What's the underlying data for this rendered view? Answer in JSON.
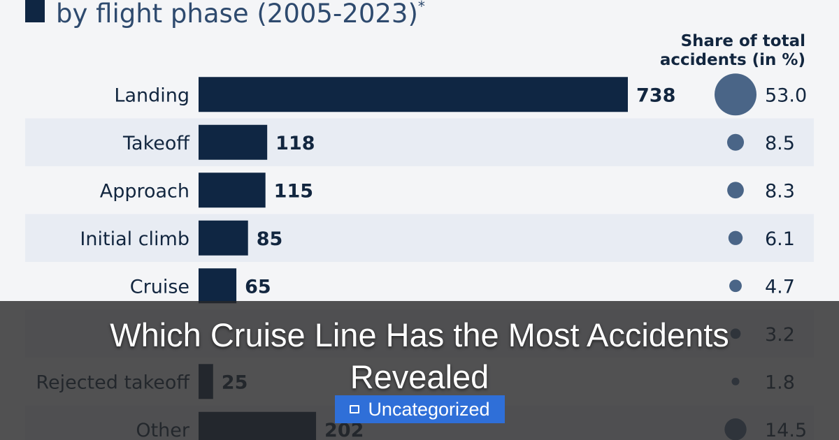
{
  "chart_data": {
    "type": "bar",
    "title_fragment": "by flight phase (2005-2023)",
    "title_footnote_mark": "*",
    "column_header": [
      "Share of total",
      "accidents (in %)"
    ],
    "categories": [
      "Landing",
      "Takeoff",
      "Approach",
      "Initial climb",
      "Cruise",
      "",
      "Rejected takeoff",
      "Other"
    ],
    "values": [
      738,
      118,
      115,
      85,
      65,
      null,
      25,
      202
    ],
    "value_labels": [
      "738",
      "118",
      "115",
      "85",
      "65",
      "",
      "25",
      "202"
    ],
    "shares": [
      53.0,
      8.5,
      8.3,
      6.1,
      4.7,
      3.2,
      1.8,
      14.5
    ],
    "share_labels": [
      "53.0",
      "8.5",
      "8.3",
      "6.1",
      "4.7",
      "3.2",
      "1.8",
      "14.5"
    ],
    "colors": {
      "bar": "#0f2643",
      "dot": "#4a6587",
      "band": "#e8ecf3",
      "text": "#12263f",
      "background": "#f4f5f7"
    }
  },
  "overlay": {
    "headline_line1": "Which Cruise Line Has the Most Accidents",
    "headline_line2": "Revealed",
    "category_icon": "folder-icon",
    "category_label": "Uncategorized"
  }
}
